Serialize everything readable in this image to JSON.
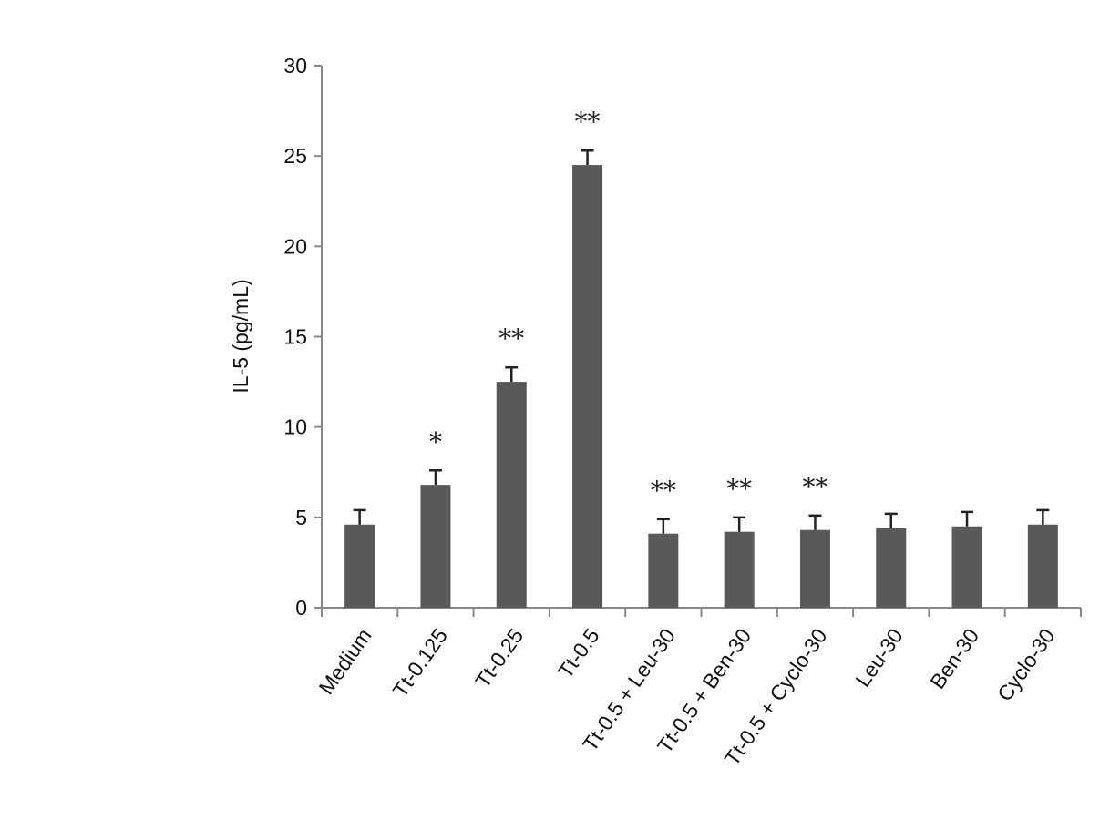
{
  "chart_data": {
    "type": "bar",
    "title": "",
    "xlabel": "",
    "ylabel": "IL-5 (pg/mL)",
    "ylim": [
      0,
      30
    ],
    "yticks": [
      0,
      5,
      10,
      15,
      20,
      25,
      30
    ],
    "grid": false,
    "legend": "none",
    "bar_color": "#595959",
    "categories": [
      "Medium",
      "Tt-0.125",
      "Tt-0.25",
      "Tt-0.5",
      "Tt-0.5 + Leu-30",
      "Tt-0.5 + Ben-30",
      "Tt-0.5 + Cyclo-30",
      "Leu-30",
      "Ben-30",
      "Cyclo-30"
    ],
    "values": [
      4.6,
      6.8,
      12.5,
      24.5,
      4.1,
      4.2,
      4.3,
      4.4,
      4.5,
      4.6
    ],
    "errors": [
      0.8,
      0.8,
      0.8,
      0.8,
      0.8,
      0.8,
      0.8,
      0.8,
      0.8,
      0.8
    ],
    "significance": [
      "",
      "*",
      "**",
      "**",
      "**",
      "**",
      "**",
      "",
      "",
      ""
    ]
  }
}
